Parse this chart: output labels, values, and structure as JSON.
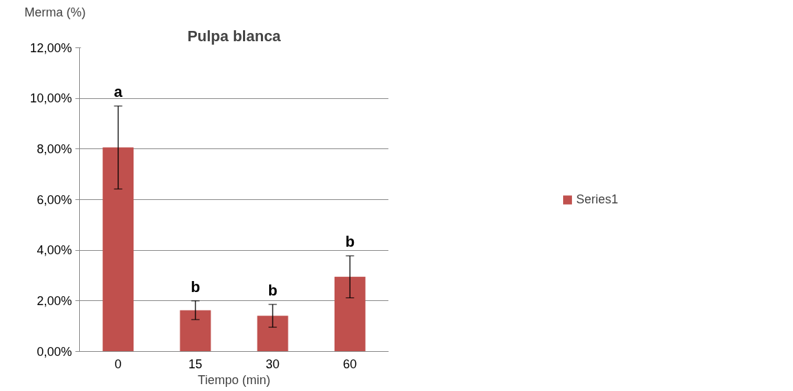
{
  "chart_data": {
    "type": "bar",
    "title": "Pulpa blanca",
    "ylabel": "Merma (%)",
    "xlabel": "Tiempo\n(min)",
    "categories": [
      "0",
      "15",
      "30",
      "60"
    ],
    "series": [
      {
        "name": "Series1",
        "color": "#c0504d",
        "values": [
          8.06,
          1.63,
          1.41,
          2.95
        ],
        "errors": [
          1.64,
          0.37,
          0.45,
          0.83
        ]
      }
    ],
    "ylim": [
      0,
      12
    ],
    "yticks": [
      {
        "value": 0,
        "label": "0,00%"
      },
      {
        "value": 2,
        "label": "2,00%"
      },
      {
        "value": 4,
        "label": "4,00%"
      },
      {
        "value": 6,
        "label": "6,00%"
      },
      {
        "value": 8,
        "label": "8,00%"
      },
      {
        "value": 10,
        "label": "10,00%"
      },
      {
        "value": 12,
        "label": "12,00%"
      }
    ],
    "annotations": [
      "a",
      "b",
      "b",
      "b"
    ],
    "grid": "y",
    "legend": "right"
  }
}
